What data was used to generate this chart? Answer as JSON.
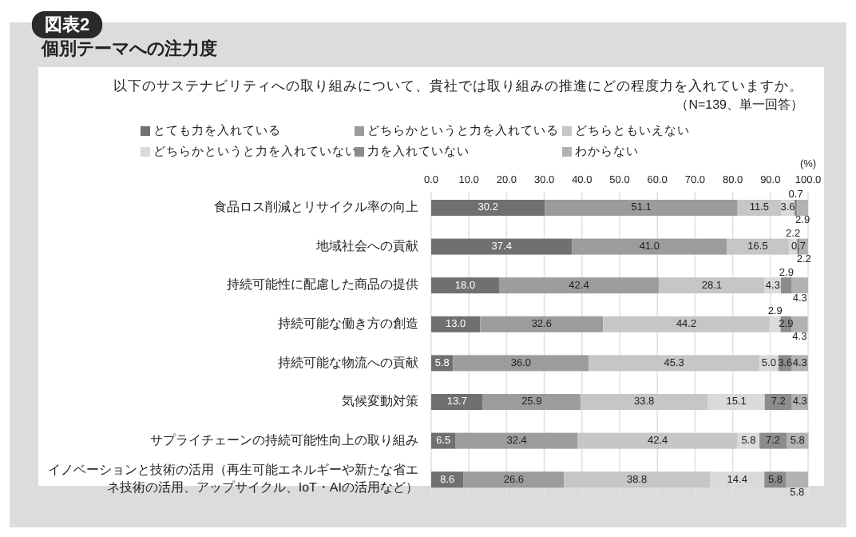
{
  "chart_data": {
    "type": "bar",
    "orientation": "horizontal",
    "stacked": true,
    "title": "個別テーマへの注力度",
    "subtitle": "以下のサステナビリティへの取り組みについて、貴社では取り組みの推進にどの程度力を入れていますか。",
    "annotations": [
      "図表2",
      "（N=139、単一回答）"
    ],
    "xlabel": "(%)",
    "categories": [
      "食品ロス削減とリサイクル率の向上",
      "地域社会への貢献",
      "持続可能性に配慮した商品の提供",
      "持続可能な働き方の創造",
      "持続可能な物流への貢献",
      "気候変動対策",
      "サプライチェーンの持続可能性向上の取り組み",
      "イノベーションと技術の活用（再生可能エネルギーや新たな省エネ技術の活用、アップサイクル、IoT・AIの活用など）"
    ],
    "series": [
      {
        "name": "とても力を入れている",
        "color": "#707070",
        "values": [
          30.2,
          37.4,
          18.0,
          13.0,
          5.8,
          13.7,
          6.5,
          8.6
        ],
        "value_labels": [
          "30.2",
          "37.4",
          "18.0",
          "13.0",
          "5.8",
          "13.7",
          "6.5",
          "8.6"
        ]
      },
      {
        "name": "どちらかというと力を入れている",
        "color": "#9c9c9c",
        "values": [
          51.1,
          41.0,
          42.4,
          32.6,
          36.0,
          25.9,
          32.4,
          26.6
        ],
        "value_labels": [
          "51.1",
          "41.0",
          "42.4",
          "32.6",
          "36.0",
          "25.9",
          "32.4",
          "26.6"
        ]
      },
      {
        "name": "どちらともいえない",
        "color": "#c6c6c6",
        "values": [
          11.5,
          16.5,
          28.1,
          44.2,
          45.3,
          33.8,
          42.4,
          38.8
        ],
        "value_labels": [
          "11.5",
          "16.5",
          "28.1",
          "44.2",
          "45.3",
          "33.8",
          "42.4",
          "38.8"
        ]
      },
      {
        "name": "どちらかというと力を入れていない",
        "color": "#dadada",
        "values": [
          3.6,
          2.2,
          4.3,
          2.9,
          5.0,
          15.1,
          5.8,
          14.4
        ],
        "value_labels": [
          "3.6",
          "2.2",
          "4.3",
          "2.9",
          "5.0",
          "15.1",
          "5.8",
          "14.4"
        ]
      },
      {
        "name": "力を入れていない",
        "color": "#8c8c8c",
        "values": [
          0.7,
          0.7,
          2.9,
          2.9,
          3.6,
          7.2,
          7.2,
          5.8
        ],
        "value_labels": [
          "0.7",
          "0.7",
          "2.9",
          "2.9",
          "3.6",
          "7.2",
          "7.2",
          "5.8"
        ]
      },
      {
        "name": "わからない",
        "color": "#b2b2b2",
        "values": [
          2.9,
          2.2,
          4.3,
          4.3,
          4.3,
          4.3,
          5.8,
          5.8
        ],
        "value_labels": [
          "2.9",
          "2.2",
          "4.3",
          "4.3",
          "4.3",
          "4.3",
          "5.8",
          "5.8"
        ]
      }
    ],
    "xlim": [
      0,
      100
    ],
    "xticks": [
      {
        "value": 0,
        "label": "0.0"
      },
      {
        "value": 10,
        "label": "10.0"
      },
      {
        "value": 20,
        "label": "20.0"
      },
      {
        "value": 30,
        "label": "30.0"
      },
      {
        "value": 40,
        "label": "40.0"
      },
      {
        "value": 50,
        "label": "50.0"
      },
      {
        "value": 60,
        "label": "60.0"
      },
      {
        "value": 70,
        "label": "70.0"
      },
      {
        "value": 80,
        "label": "80.0"
      },
      {
        "value": 90,
        "label": "90.0"
      },
      {
        "value": 100,
        "label": "100.0"
      }
    ],
    "grid": "x",
    "legend": "top"
  }
}
